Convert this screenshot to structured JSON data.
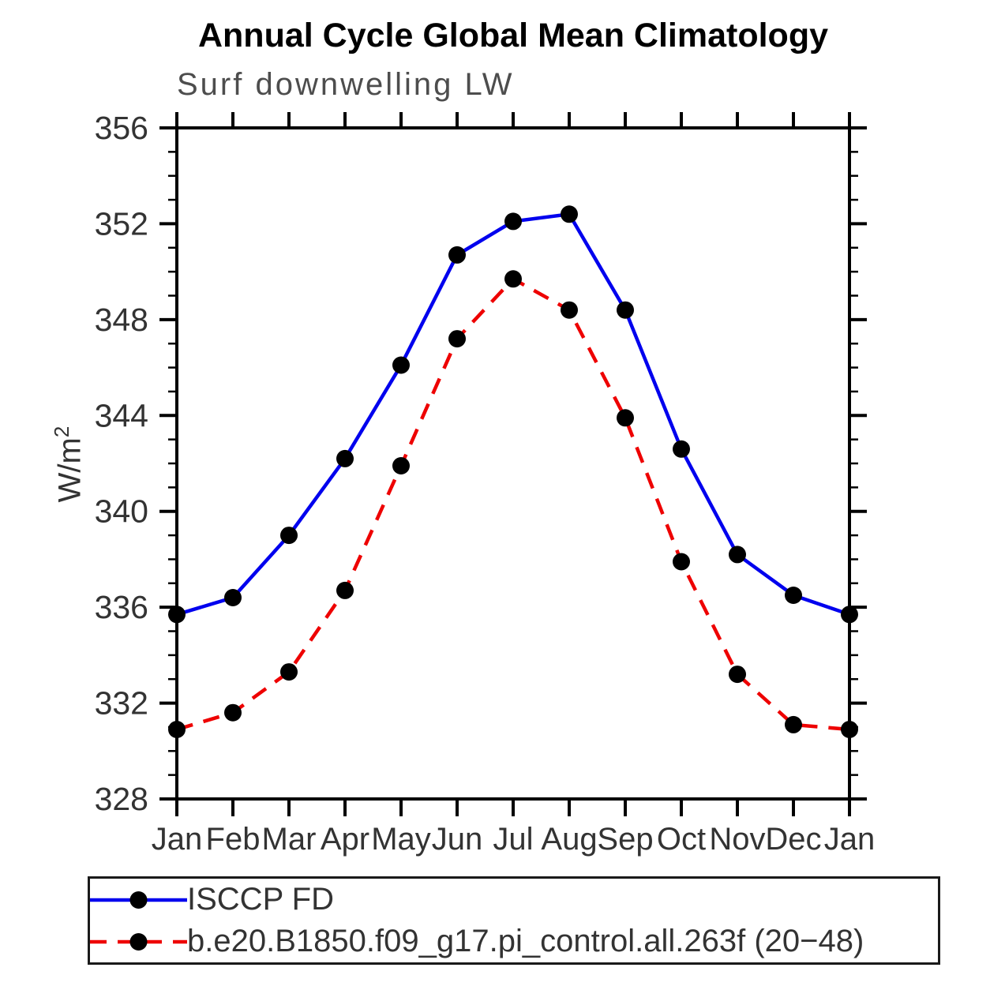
{
  "title": "Annual Cycle Global Mean Climatology",
  "chart_data": {
    "type": "line",
    "title": "Annual Cycle Global Mean Climatology",
    "subtitle": "Surf downwelling LW",
    "ylabel_base": "W/m",
    "ylabel_sup": "2",
    "categories": [
      "Jan",
      "Feb",
      "Mar",
      "Apr",
      "May",
      "Jun",
      "Jul",
      "Aug",
      "Sep",
      "Oct",
      "Nov",
      "Dec",
      "Jan"
    ],
    "ylim": [
      328,
      356
    ],
    "ytick_major": [
      328,
      332,
      336,
      340,
      344,
      348,
      352,
      356
    ],
    "ytick_minor_step": 1,
    "grid": false,
    "legend_position": "bottom-left-box",
    "series": [
      {
        "name": "ISCCP FD",
        "color": "#0000ee",
        "line_style": "solid",
        "values": [
          335.7,
          336.4,
          339.0,
          342.2,
          346.1,
          350.7,
          352.1,
          352.4,
          348.4,
          342.6,
          338.2,
          336.5,
          335.7
        ]
      },
      {
        "name": "b.e20.B1850.f09_g17.pi_control.all.263f (20−48)",
        "color": "#ee0000",
        "line_style": "dashed",
        "values": [
          330.9,
          331.6,
          333.3,
          336.7,
          341.9,
          347.2,
          349.7,
          348.4,
          343.9,
          337.9,
          333.2,
          331.1,
          330.9
        ]
      }
    ],
    "marker": {
      "shape": "circle",
      "color": "#000000",
      "radius": 11
    }
  },
  "colors": {
    "axis": "#000000",
    "tick_label": "#333333",
    "subtitle": "#4d4d4d",
    "legend_border": "#1a1a1a",
    "legend_text": "#333333"
  }
}
